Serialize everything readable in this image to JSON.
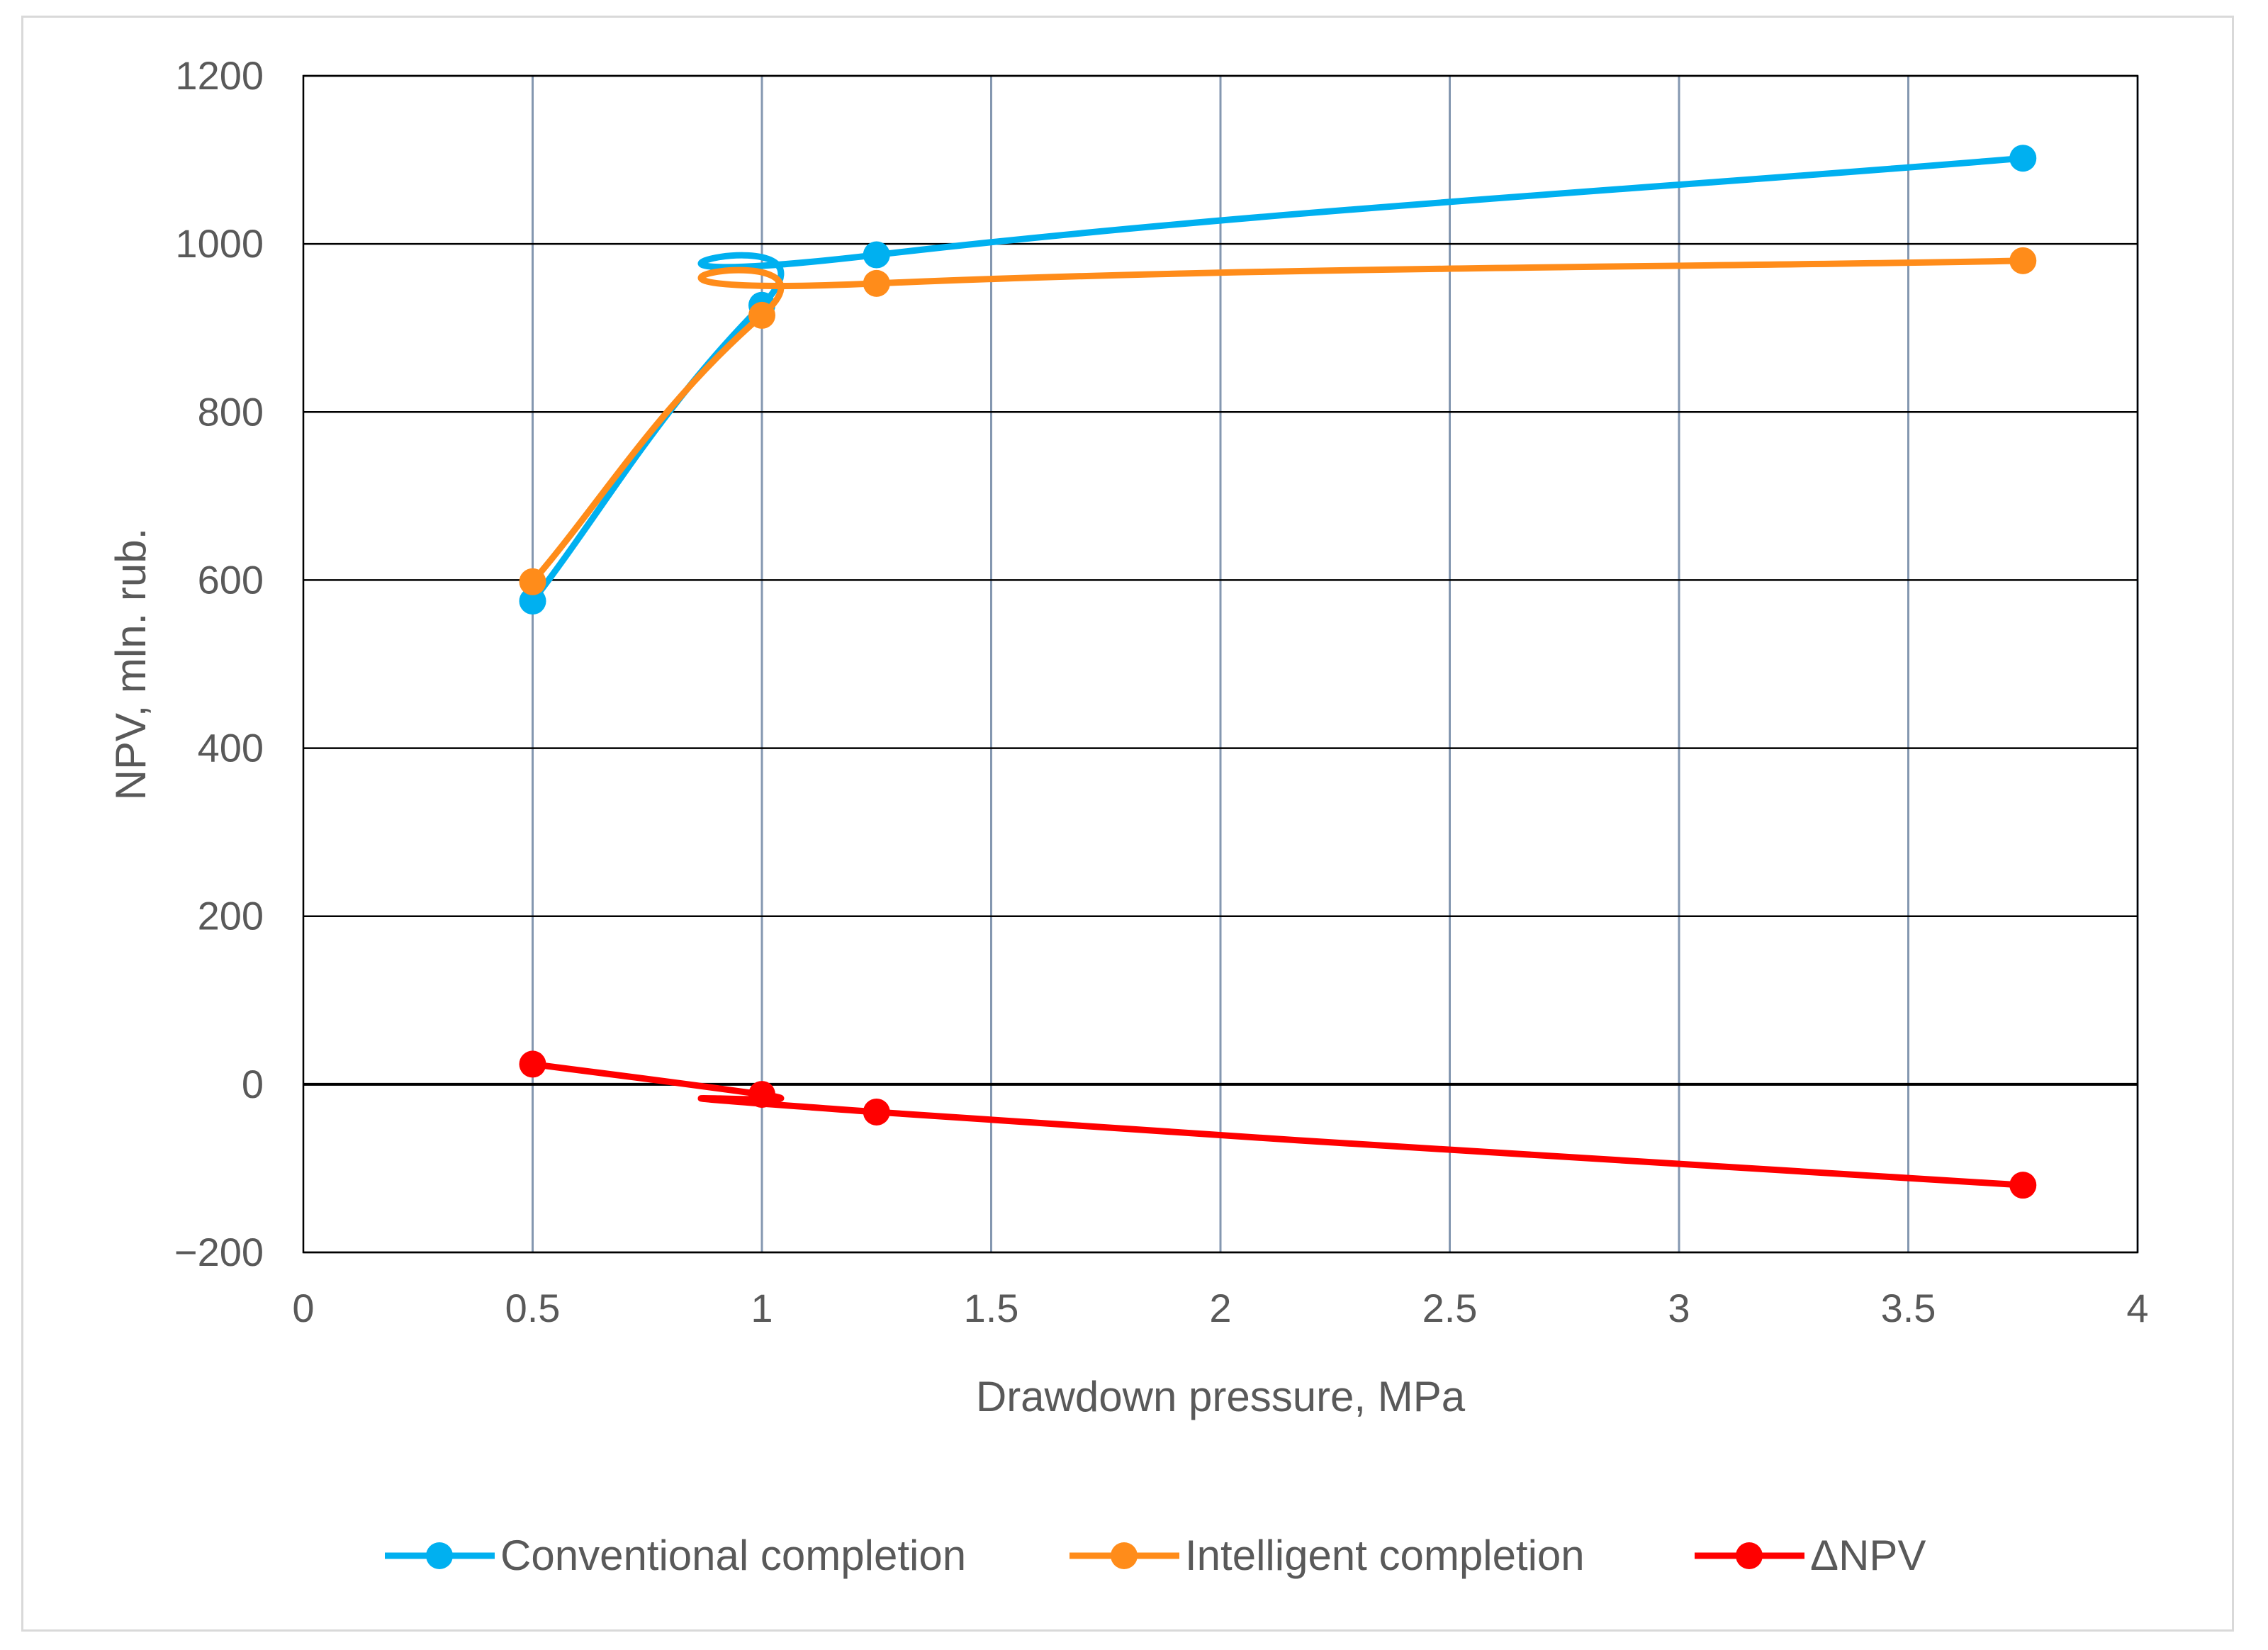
{
  "chart_data": {
    "type": "line",
    "title": "",
    "xlabel": "Drawdown pressure, MPa",
    "ylabel": "NPV, mln. rub.",
    "xlim": [
      0,
      4
    ],
    "ylim": [
      -200,
      1200
    ],
    "x_ticks": [
      0,
      0.5,
      1,
      1.5,
      2,
      2.5,
      3,
      3.5,
      4
    ],
    "x_tick_labels": [
      "0",
      "0.5",
      "1",
      "1.5",
      "2",
      "2.5",
      "3",
      "3.5",
      "4"
    ],
    "y_ticks": [
      -200,
      0,
      200,
      400,
      600,
      800,
      1000,
      1200
    ],
    "y_tick_labels": [
      "−200",
      "0",
      "200",
      "400",
      "600",
      "800",
      "1000",
      "1200"
    ],
    "grid": true,
    "legend_position": "bottom",
    "series": [
      {
        "name": "Conventional completion",
        "color": "#00b0f0",
        "x": [
          0.5,
          1,
          1.25,
          3.75
        ],
        "values": [
          575,
          927,
          987,
          1102
        ]
      },
      {
        "name": "Intelligent completion",
        "color": "#ff8c1a",
        "x": [
          0.5,
          1,
          1.25,
          3.75
        ],
        "values": [
          598,
          915,
          953,
          980
        ]
      },
      {
        "name": "ΔNPV",
        "color": "#ff0000",
        "x": [
          0.5,
          1,
          1.25,
          3.75
        ],
        "values": [
          24,
          -12,
          -33,
          -120
        ]
      }
    ]
  }
}
